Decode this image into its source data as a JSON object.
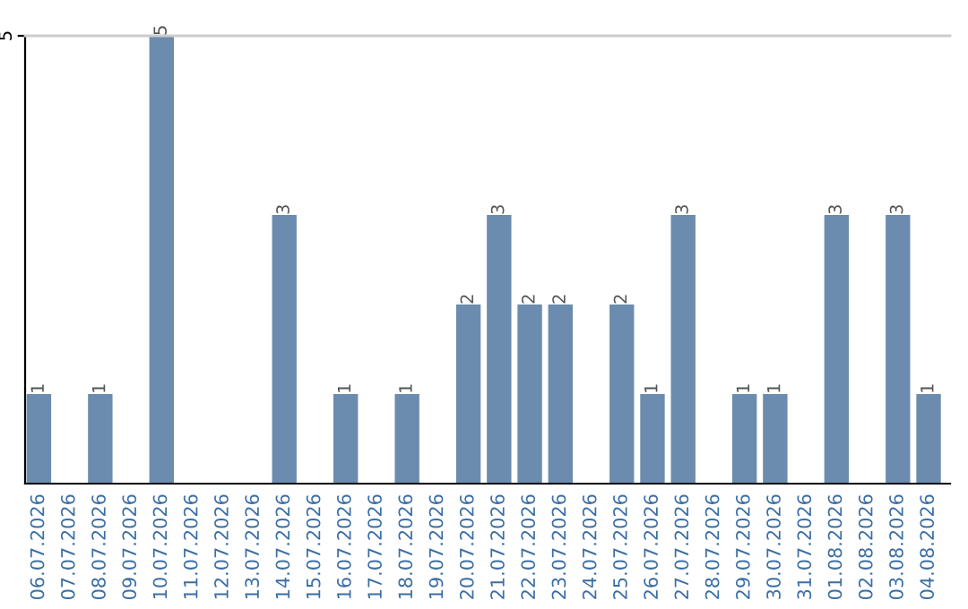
{
  "chart_data": {
    "type": "bar",
    "categories": [
      "06.07.2026",
      "07.07.2026",
      "08.07.2026",
      "09.07.2026",
      "10.07.2026",
      "11.07.2026",
      "12.07.2026",
      "13.07.2026",
      "14.07.2026",
      "15.07.2026",
      "16.07.2026",
      "17.07.2026",
      "18.07.2026",
      "19.07.2026",
      "20.07.2026",
      "21.07.2026",
      "22.07.2026",
      "23.07.2026",
      "24.07.2026",
      "25.07.2026",
      "26.07.2026",
      "27.07.2026",
      "28.07.2026",
      "29.07.2026",
      "30.07.2026",
      "31.07.2026",
      "01.08.2026",
      "02.08.2026",
      "03.08.2026",
      "04.08.2026"
    ],
    "values": [
      1,
      0,
      1,
      0,
      5,
      0,
      0,
      0,
      3,
      0,
      1,
      0,
      1,
      0,
      2,
      3,
      2,
      2,
      0,
      2,
      1,
      3,
      0,
      1,
      1,
      0,
      3,
      0,
      3,
      1
    ],
    "value_labels": [
      "1",
      null,
      "1",
      null,
      "5",
      null,
      null,
      null,
      "3",
      null,
      "1",
      null,
      "1",
      null,
      "2",
      "3",
      "2",
      "2",
      null,
      "2",
      "1",
      "3",
      null,
      "1",
      "1",
      null,
      "3",
      null,
      "3",
      "1"
    ],
    "color": "#6b8cae",
    "ylim": [
      0,
      5
    ],
    "yticks": [
      5
    ]
  }
}
